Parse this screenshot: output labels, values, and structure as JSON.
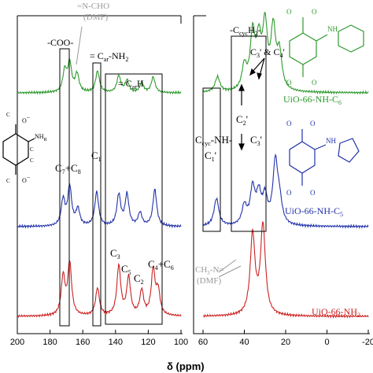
{
  "chart_data": {
    "type": "line",
    "xlabel": "δ (ppm)",
    "x_reversed": true,
    "panels": [
      {
        "name": "left",
        "xlim": [
          200,
          100
        ],
        "ticks": [
          200,
          180,
          160,
          140,
          120,
          100
        ]
      },
      {
        "name": "right",
        "xlim": [
          60,
          -20
        ],
        "ticks": [
          60,
          40,
          20,
          0,
          -20
        ]
      }
    ],
    "series": [
      {
        "name": "UiO-66-NH-C6",
        "color": "#2e9a2e",
        "peaks": [
          {
            "x": 171,
            "h": 0.45
          },
          {
            "x": 168,
            "h": 0.6
          },
          {
            "x": 163.5,
            "h": 0.38
          },
          {
            "x": 151,
            "h": 0.45
          },
          {
            "x": 138,
            "h": 0.35
          },
          {
            "x": 133,
            "h": 0.25
          },
          {
            "x": 124,
            "h": 0.2
          },
          {
            "x": 117,
            "h": 0.33
          },
          {
            "x": 53,
            "h": 0.32
          },
          {
            "x": 40,
            "h": 0.5
          },
          {
            "x": 36,
            "h": 1.15
          },
          {
            "x": 33,
            "h": 0.95
          },
          {
            "x": 30,
            "h": 1.3
          },
          {
            "x": 26,
            "h": 1.25
          },
          {
            "x": 23,
            "h": 0.75
          }
        ]
      },
      {
        "name": "UiO-66-NH-C5",
        "color": "#2233aa",
        "peaks": [
          {
            "x": 172,
            "h": 0.55
          },
          {
            "x": 168,
            "h": 0.82
          },
          {
            "x": 163,
            "h": 0.35
          },
          {
            "x": 151.5,
            "h": 0.72
          },
          {
            "x": 138,
            "h": 0.66
          },
          {
            "x": 133,
            "h": 0.66
          },
          {
            "x": 125,
            "h": 0.28
          },
          {
            "x": 116,
            "h": 0.78
          },
          {
            "x": 53.5,
            "h": 0.58
          },
          {
            "x": 40,
            "h": 0.4
          },
          {
            "x": 36,
            "h": 0.75
          },
          {
            "x": 33,
            "h": 0.6
          },
          {
            "x": 30,
            "h": 0.55
          },
          {
            "x": 25,
            "h": 1.3
          },
          {
            "x": 23,
            "h": 0.45
          }
        ]
      },
      {
        "name": "UiO-66-NH2",
        "color": "#cc2222",
        "peaks": [
          {
            "x": 172,
            "h": 0.82
          },
          {
            "x": 168,
            "h": 1.1
          },
          {
            "x": 151,
            "h": 0.58
          },
          {
            "x": 138,
            "h": 1.05
          },
          {
            "x": 132,
            "h": 0.8
          },
          {
            "x": 124,
            "h": 0.52
          },
          {
            "x": 117,
            "h": 0.95
          },
          {
            "x": 114,
            "h": 0.5
          },
          {
            "x": 36,
            "h": 1.7
          },
          {
            "x": 31,
            "h": 1.9
          }
        ]
      }
    ]
  },
  "annotations": {
    "coo": "-COO-",
    "ncho": "=N-CHO",
    "dmf_1": "(DMF)",
    "car_nh2": "= C",
    "car_nh2_sub": "ar",
    "car_nh2_tail": "-NH",
    "car_nh2_sub2": "2",
    "car_h": "= C",
    "car_h_sub": "ar",
    "car_h_tail": "H",
    "c7c8": "C",
    "c7": "7",
    "c8plus": "+C",
    "c8": "8",
    "c1": "C",
    "c1_sub": "1",
    "ccyc_h2": "-C",
    "ccyc_h2_sub": "cyc",
    "ccyc_h2_tail": "H",
    "ccyc_h2_sub2": "2",
    "ccyc_h2_dash": "-",
    "c3c4": "C",
    "c3c4_sub": "3",
    "c3c4_amp": "' & C",
    "c3c4_sub2": "4",
    "c3c4_prime": "'",
    "c2p": "C",
    "c2p_sub": "2",
    "c2p_prime": "'",
    "c3p": "C",
    "c3p_sub": "3",
    "c3p_prime": "'",
    "ccycnh": "C",
    "ccycnh_sub": "cyc",
    "ccycnh_tail": "-NH-",
    "c1p": "C",
    "c1p_sub": "1",
    "c1p_prime": "'",
    "c3": "C",
    "c3_sub": "3",
    "c5": "C",
    "c5_sub": "5",
    "c2": "C",
    "c2_sub": "2",
    "c4c6": "C",
    "c4c6_sub": "4",
    "c4c6_plus": "+C",
    "c4c6_sub2": "6",
    "ch3n": "CH",
    "ch3n_sub": "3",
    "ch3n_tail": "-N=",
    "dmf_2": "(DMF)",
    "label_c6": "UiO-66-NH-C",
    "label_c6_sub": "6",
    "label_c5": "UiO-66-NH-C",
    "label_c5_sub": "5",
    "label_nh2": "UiO-66-NH",
    "label_nh2_sub": "2",
    "struct_o_minus": "O",
    "struct_nh_r": "NH",
    "struct_r": "R",
    "struct_c2": "C",
    "struct_c3": "C",
    "struct_c4": "C",
    "struct_c5": "C",
    "struct_c6": "C",
    "struct_c7": "C",
    "struct_c8": "C",
    "struct_c1": "C",
    "struct_nh": "NH",
    "struct_o": "O",
    "struct_minus": "−"
  },
  "colors": {
    "green": "#2e9a2e",
    "blue": "#2233aa",
    "red": "#cc2222",
    "gray": "#999999",
    "axis": "#000000"
  }
}
